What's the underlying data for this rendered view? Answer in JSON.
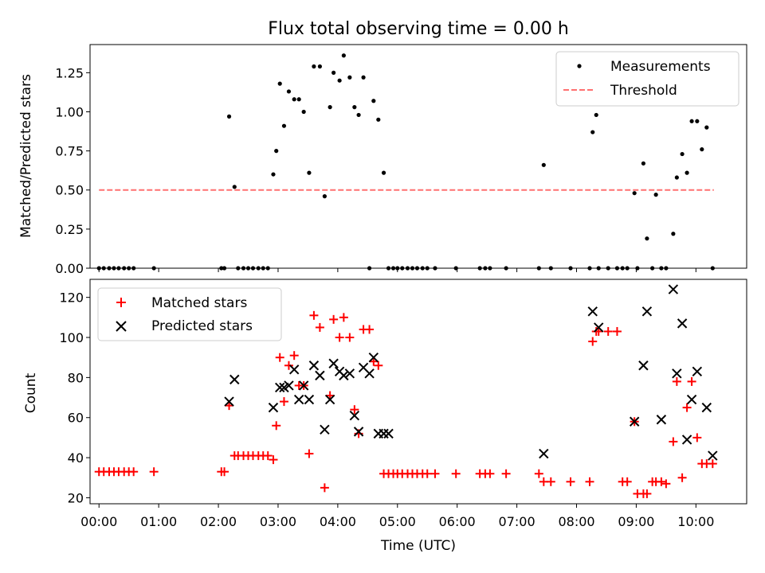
{
  "chart_data": [
    {
      "type": "scatter",
      "title": "Flux total observing time = 0.00 h",
      "ylabel": "Matched/Predicted stars",
      "xlabel": "",
      "xlim": [
        -0.15,
        10.85
      ],
      "ylim": [
        0,
        1.43
      ],
      "yticks": [
        0.0,
        0.25,
        0.5,
        0.75,
        1.0,
        1.25
      ],
      "ytick_labels": [
        "0.00",
        "0.25",
        "0.50",
        "0.75",
        "1.00",
        "1.25"
      ],
      "legend_position": "upper-right",
      "series": [
        {
          "name": "Measurements",
          "color": "#000000",
          "marker": "dot",
          "x": [
            0.0,
            0.08,
            0.17,
            0.25,
            0.33,
            0.42,
            0.5,
            0.58,
            0.92,
            2.05,
            2.1,
            2.18,
            2.27,
            2.33,
            2.42,
            2.5,
            2.58,
            2.67,
            2.75,
            2.83,
            2.92,
            2.97,
            3.03,
            3.1,
            3.18,
            3.27,
            3.35,
            3.43,
            3.52,
            3.6,
            3.7,
            3.78,
            3.87,
            3.93,
            4.03,
            4.1,
            4.2,
            4.28,
            4.35,
            4.43,
            4.53,
            4.6,
            4.68,
            4.77,
            4.85,
            4.93,
            5.0,
            5.08,
            5.17,
            5.25,
            5.33,
            5.42,
            5.5,
            5.63,
            5.98,
            6.38,
            6.47,
            6.55,
            6.82,
            7.37,
            7.45,
            7.57,
            7.9,
            8.22,
            8.27,
            8.33,
            8.37,
            8.53,
            8.68,
            8.77,
            8.85,
            8.97,
            9.02,
            9.12,
            9.18,
            9.27,
            9.33,
            9.42,
            9.5,
            9.62,
            9.68,
            9.77,
            9.85,
            9.93,
            10.02,
            10.1,
            10.18,
            10.28
          ],
          "y": [
            0,
            0,
            0,
            0,
            0,
            0,
            0,
            0,
            0,
            0,
            0,
            0.97,
            0.52,
            0,
            0,
            0,
            0,
            0,
            0,
            0,
            0.6,
            0.75,
            1.18,
            0.91,
            1.13,
            1.08,
            1.08,
            1.0,
            0.61,
            1.29,
            1.29,
            0.46,
            1.03,
            1.25,
            1.2,
            1.36,
            1.22,
            1.03,
            0.98,
            1.22,
            0,
            1.07,
            0.95,
            0.61,
            0,
            0,
            0,
            0,
            0,
            0,
            0,
            0,
            0,
            0,
            0,
            0,
            0,
            0,
            0,
            0,
            0.66,
            0,
            0,
            0,
            0.87,
            0.98,
            0,
            0,
            0,
            0,
            0,
            0.48,
            0,
            0.67,
            0.19,
            0,
            0.47,
            0,
            0,
            0.22,
            0.58,
            0.73,
            0.61,
            0.94,
            0.94,
            0.76,
            0.9,
            0
          ]
        },
        {
          "name": "Threshold",
          "color": "#ff7070",
          "style": "dashed",
          "x": [
            0.0,
            10.3
          ],
          "y": [
            0.5,
            0.5
          ]
        }
      ]
    },
    {
      "type": "scatter",
      "title": "",
      "ylabel": "Count",
      "xlabel": "Time (UTC)",
      "xlim": [
        -0.15,
        10.85
      ],
      "ylim": [
        17,
        129
      ],
      "yticks": [
        20,
        40,
        60,
        80,
        100,
        120
      ],
      "ytick_labels": [
        "20",
        "40",
        "60",
        "80",
        "100",
        "120"
      ],
      "xticks": [
        0,
        1,
        2,
        3,
        4,
        5,
        6,
        7,
        8,
        9,
        10
      ],
      "xtick_labels": [
        "00:00",
        "01:00",
        "02:00",
        "03:00",
        "04:00",
        "05:00",
        "06:00",
        "07:00",
        "08:00",
        "09:00",
        "10:00"
      ],
      "legend_position": "upper-left",
      "series": [
        {
          "name": "Matched stars",
          "color": "#ff0000",
          "marker": "plus",
          "x": [
            0.0,
            0.08,
            0.17,
            0.25,
            0.33,
            0.42,
            0.5,
            0.58,
            0.92,
            2.05,
            2.1,
            2.18,
            2.27,
            2.33,
            2.42,
            2.5,
            2.58,
            2.67,
            2.75,
            2.83,
            2.92,
            2.97,
            3.03,
            3.1,
            3.18,
            3.27,
            3.35,
            3.43,
            3.52,
            3.6,
            3.7,
            3.78,
            3.87,
            3.93,
            4.03,
            4.1,
            4.2,
            4.28,
            4.35,
            4.43,
            4.53,
            4.6,
            4.68,
            4.77,
            4.85,
            4.93,
            5.0,
            5.08,
            5.17,
            5.25,
            5.33,
            5.42,
            5.5,
            5.63,
            5.98,
            6.38,
            6.47,
            6.55,
            6.82,
            7.37,
            7.45,
            7.57,
            7.9,
            8.22,
            8.27,
            8.33,
            8.37,
            8.53,
            8.68,
            8.77,
            8.85,
            8.97,
            9.02,
            9.12,
            9.18,
            9.27,
            9.33,
            9.42,
            9.5,
            9.62,
            9.68,
            9.77,
            9.85,
            9.93,
            10.02,
            10.1,
            10.18,
            10.28
          ],
          "y": [
            33,
            33,
            33,
            33,
            33,
            33,
            33,
            33,
            33,
            33,
            33,
            66,
            41,
            41,
            41,
            41,
            41,
            41,
            41,
            41,
            39,
            56,
            90,
            68,
            86,
            91,
            76,
            76,
            42,
            111,
            105,
            25,
            71,
            109,
            100,
            110,
            100,
            64,
            52,
            104,
            104,
            88,
            86,
            32,
            32,
            32,
            32,
            32,
            32,
            32,
            32,
            32,
            32,
            32,
            32,
            32,
            32,
            32,
            32,
            32,
            28,
            28,
            28,
            28,
            98,
            103,
            103,
            103,
            103,
            28,
            28,
            58,
            22,
            22,
            22,
            28,
            28,
            28,
            27,
            48,
            78,
            30,
            65,
            78,
            50,
            37,
            37,
            37
          ]
        },
        {
          "name": "Predicted stars",
          "color": "#000000",
          "marker": "x",
          "x": [
            2.18,
            2.27,
            2.92,
            3.03,
            3.1,
            3.18,
            3.27,
            3.35,
            3.43,
            3.52,
            3.6,
            3.7,
            3.78,
            3.87,
            3.93,
            4.03,
            4.1,
            4.2,
            4.28,
            4.35,
            4.43,
            4.53,
            4.6,
            4.68,
            4.77,
            4.85,
            7.45,
            8.27,
            8.37,
            8.97,
            9.12,
            9.18,
            9.42,
            9.62,
            9.68,
            9.77,
            9.85,
            9.93,
            10.02,
            10.18,
            10.28
          ],
          "y": [
            68,
            79,
            65,
            75,
            75,
            76,
            84,
            69,
            76,
            69,
            86,
            81,
            54,
            69,
            87,
            83,
            81,
            82,
            61,
            53,
            85,
            82,
            90,
            52,
            52,
            52,
            42,
            113,
            105,
            58,
            86,
            113,
            59,
            124,
            82,
            107,
            49,
            69,
            83,
            65,
            41
          ]
        }
      ]
    }
  ]
}
